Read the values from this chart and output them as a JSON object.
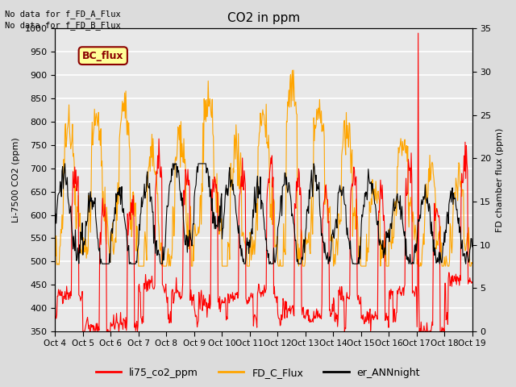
{
  "title": "CO2 in ppm",
  "ylabel_left": "Li-7500 CO2 (ppm)",
  "ylabel_right": "FD chamber flux (ppm)",
  "ylim_left": [
    350,
    1000
  ],
  "ylim_right": [
    0,
    35
  ],
  "yticks_left": [
    350,
    400,
    450,
    500,
    550,
    600,
    650,
    700,
    750,
    800,
    850,
    900,
    950,
    1000
  ],
  "yticks_right": [
    0,
    5,
    10,
    15,
    20,
    25,
    30,
    35
  ],
  "xtick_labels": [
    "Oct 4",
    "Oct 5",
    "Oct 6",
    "Oct 7",
    "Oct 8",
    "Oct 9",
    "Oct 10",
    "Oct 11",
    "Oct 12",
    "Oct 13",
    "Oct 14",
    "Oct 15",
    "Oct 16",
    "Oct 17",
    "Oct 18",
    "Oct 19"
  ],
  "note1": "No data for f_FD_A_Flux",
  "note2": "No data for f_FD_B_Flux",
  "bc_flux_label": "BC_flux",
  "legend_entries": [
    "li75_co2_ppm",
    "FD_C_Flux",
    "er_ANNnight"
  ],
  "colors": {
    "li75": "#FF0000",
    "fd_c": "#FFA500",
    "er_ann": "#000000",
    "bc_flux_box": "#FFFF99",
    "bc_flux_border": "#8B0000",
    "bc_flux_text": "#8B0000"
  },
  "axes_bg_color": "#E8E8E8",
  "fig_bg_color": "#DCDCDC",
  "grid_color": "#FFFFFF",
  "figsize": [
    6.4,
    4.8
  ],
  "dpi": 100
}
